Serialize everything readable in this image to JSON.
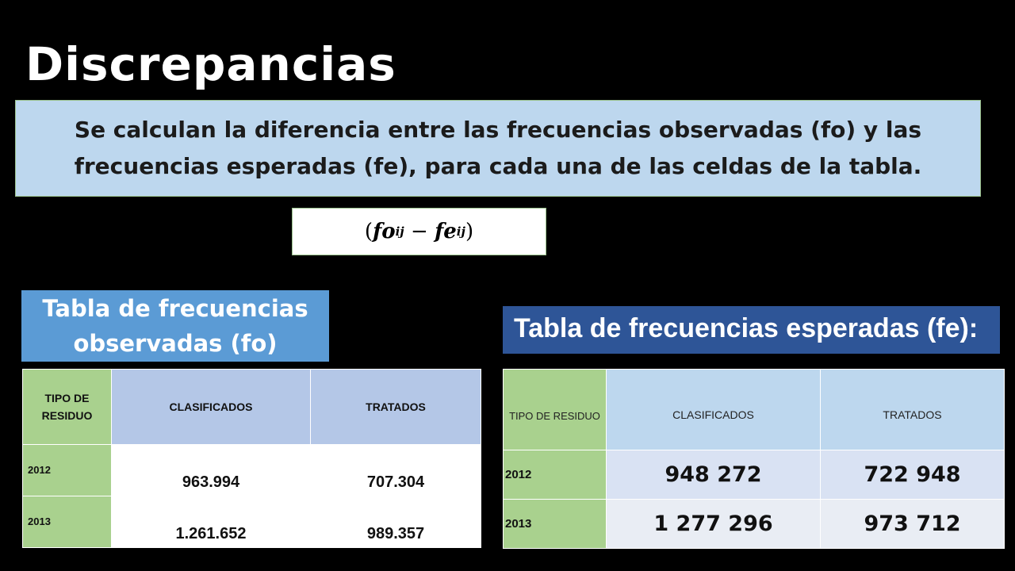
{
  "slide": {
    "title": "Discrepancias",
    "intro_text": "Se calculan la diferencia entre las frecuencias observadas (fo) y las frecuencias esperadas (fe), para cada una de las celdas de la  tabla.",
    "formula": {
      "open": "(",
      "a": "fo",
      "a_sub": "ij",
      "minus": " − ",
      "b": "fe",
      "b_sub": "ij",
      "close": ")"
    }
  },
  "observed": {
    "title": "Tabla de frecuencias observadas (fo)",
    "headers": [
      "TIPO DE RESIDUO",
      "CLASIFICADOS",
      "TRATADOS"
    ],
    "rows": [
      {
        "year": "2012",
        "clasificados": "963.994",
        "tratados": "707.304"
      },
      {
        "year": "2013",
        "clasificados": "1.261.652",
        "tratados": "989.357"
      }
    ]
  },
  "expected": {
    "title": "Tabla de frecuencias esperadas (fe):",
    "headers": [
      "TIPO DE RESIDUO",
      "CLASIFICADOS",
      "TRATADOS"
    ],
    "rows": [
      {
        "year": "2012",
        "clasificados": "948 272",
        "tratados": "722 948"
      },
      {
        "year": "2013",
        "clasificados": "1 277 296",
        "tratados": "973 712"
      }
    ]
  },
  "colors": {
    "background": "#000000",
    "intro_box": "#bdd7ee",
    "observed_title_bg": "#5b9bd5",
    "expected_title_bg": "#2e5597",
    "year_cell": "#a9d18e",
    "header_cell_fo": "#b4c7e7",
    "header_cell_fe": "#bdd7ee"
  }
}
